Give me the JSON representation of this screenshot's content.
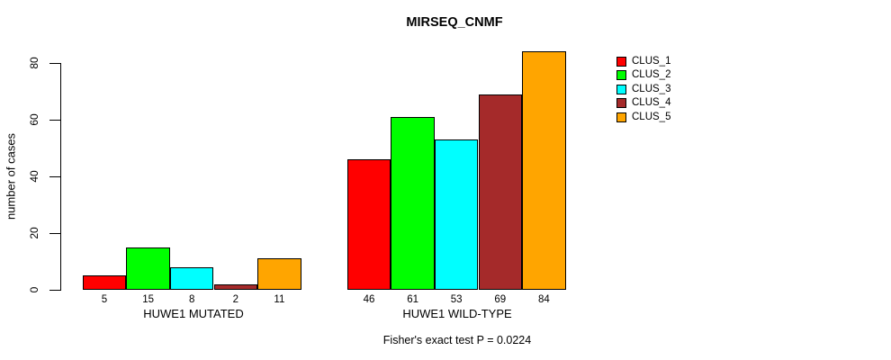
{
  "chart_data": {
    "type": "bar",
    "title": "MIRSEQ_CNMF",
    "xlabel": "",
    "ylabel": "number of cases",
    "ylim": [
      0,
      80
    ],
    "yticks": [
      "0",
      "20",
      "40",
      "60",
      "80"
    ],
    "grid": false,
    "legend_position": "right",
    "groups": [
      {
        "label": "HUWE1 MUTATED",
        "values": [
          5,
          15,
          8,
          2,
          11
        ]
      },
      {
        "label": "HUWE1 WILD-TYPE",
        "values": [
          46,
          61,
          53,
          69,
          84
        ]
      }
    ],
    "series": [
      {
        "name": "CLUS_1",
        "color": "#ff0000"
      },
      {
        "name": "CLUS_2",
        "color": "#00ff00"
      },
      {
        "name": "CLUS_3",
        "color": "#00ffff"
      },
      {
        "name": "CLUS_4",
        "color": "#a52a2a"
      },
      {
        "name": "CLUS_5",
        "color": "#ffa500"
      }
    ],
    "annotation": "Fisher's exact test P = 0.0224"
  },
  "colors": {
    "axis": "#000000",
    "background": "#ffffff",
    "text": "#000000"
  }
}
